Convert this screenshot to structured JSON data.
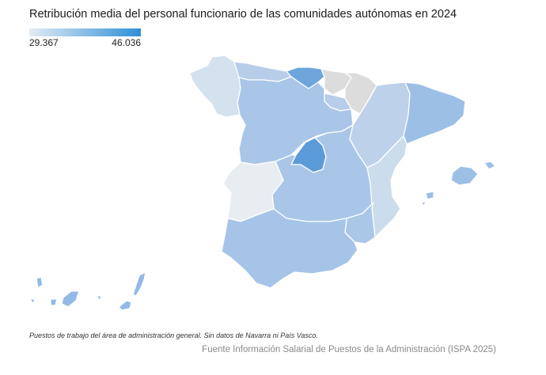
{
  "title": "Retribución media del personal funcionario de las comunidades autónomas en 2024",
  "legend": {
    "min_label": "29.367",
    "max_label": "46.036",
    "min_color": "#e3ecf5",
    "max_color": "#2e8fd6"
  },
  "no_data_color": "#dcdcdc",
  "regions": [
    {
      "name": "Galicia",
      "color": "#d4e2ef"
    },
    {
      "name": "Asturias",
      "color": "#b7cde9"
    },
    {
      "name": "Cantabria",
      "color": "#6ea6dc"
    },
    {
      "name": "País Vasco",
      "color": "#dcdcdc"
    },
    {
      "name": "Navarra",
      "color": "#dcdcdc"
    },
    {
      "name": "La Rioja",
      "color": "#b7cde9"
    },
    {
      "name": "Aragón",
      "color": "#bdd1ea"
    },
    {
      "name": "Cataluña",
      "color": "#9cbfe6"
    },
    {
      "name": "Castilla y León",
      "color": "#a9c6e8"
    },
    {
      "name": "Madrid",
      "color": "#5b9bd9"
    },
    {
      "name": "Castilla-La Mancha",
      "color": "#a9c6e8"
    },
    {
      "name": "Extremadura",
      "color": "#e8edf1"
    },
    {
      "name": "Comunidad Valenciana",
      "color": "#cbdcec"
    },
    {
      "name": "Murcia",
      "color": "#abc7e8"
    },
    {
      "name": "Andalucía",
      "color": "#a5c4e8"
    },
    {
      "name": "Islas Baleares",
      "color": "#9cbfe6"
    },
    {
      "name": "Canarias",
      "color": "#93bae5"
    }
  ],
  "note": "Puestos de trabajo del área de administración general. Sin datos de Navarra ni País Vasco.",
  "source": "Fuente Información Salarial de Puestos de la Administración (ISPA 2025)"
}
